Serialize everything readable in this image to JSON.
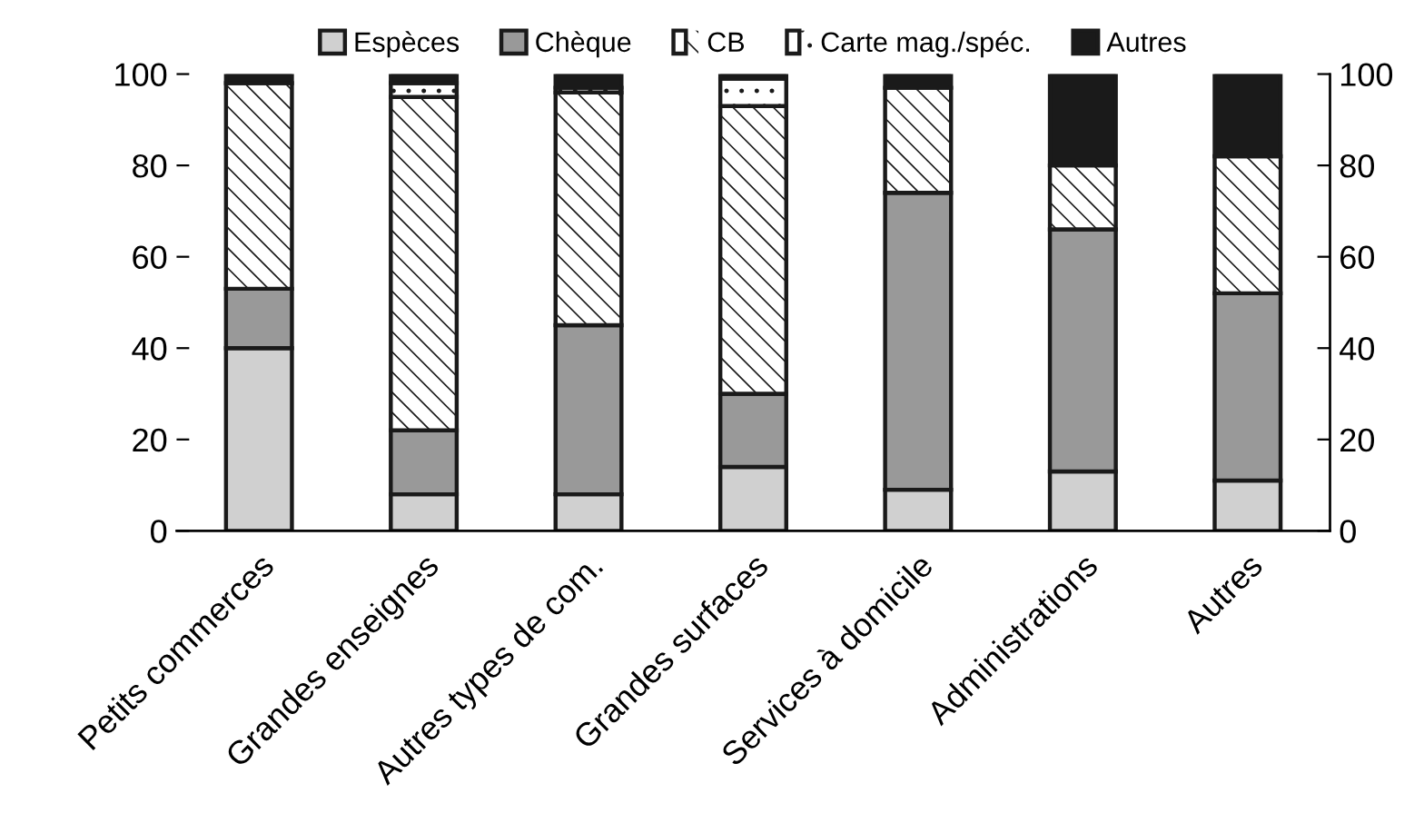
{
  "chart_data": {
    "type": "bar",
    "stacked": true,
    "categories": [
      "Petits commerces",
      "Grandes enseignes",
      "Autres types de com.",
      "Grandes surfaces",
      "Services à domicile",
      "Administrations",
      "Autres"
    ],
    "series": [
      {
        "name": "Espèces",
        "color": "#d0d0d0",
        "values": [
          40,
          8,
          8,
          14,
          9,
          13,
          11
        ]
      },
      {
        "name": "Chèque",
        "color": "#999999",
        "values": [
          13,
          14,
          37,
          16,
          65,
          53,
          41
        ]
      },
      {
        "name": "CB",
        "color": "#ffffff",
        "values": [
          45,
          73,
          51,
          63,
          23,
          14,
          30
        ]
      },
      {
        "name": "Carte mag./spéc.",
        "color": "#ffffff",
        "values": [
          null,
          3,
          1,
          6,
          null,
          null,
          null
        ]
      },
      {
        "name": "Autres",
        "color": "#1a1a1a",
        "values": [
          2,
          2,
          3,
          1,
          3,
          20,
          18
        ]
      }
    ],
    "ylim": [
      0,
      100
    ],
    "yticks": [
      0,
      20,
      40,
      60,
      80,
      100
    ],
    "y2lim": [
      0,
      100
    ],
    "y2ticks": [
      0,
      20,
      40,
      60,
      80,
      100
    ],
    "grid": false,
    "legend": "top"
  }
}
